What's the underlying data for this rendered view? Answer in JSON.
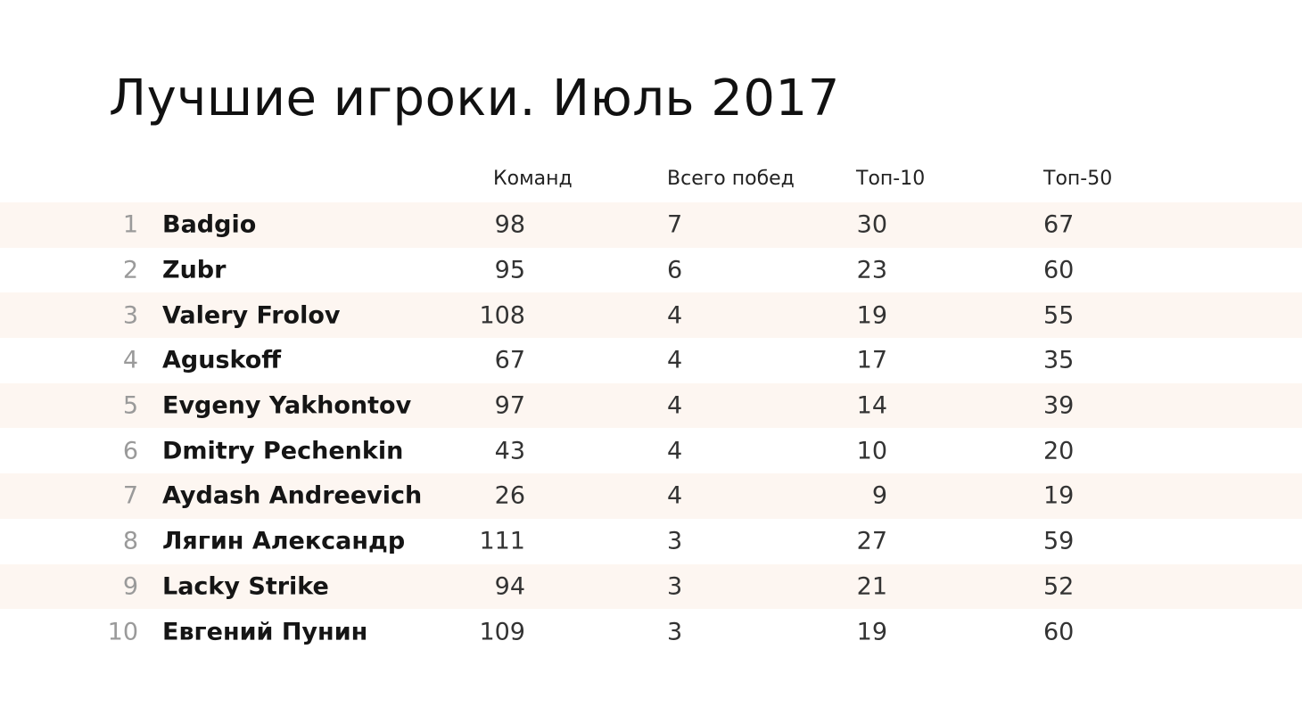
{
  "title": "Лучшие игроки. Июль 2017",
  "columns": {
    "teams": "Команд",
    "wins": "Всего побед",
    "top10": "Топ-10",
    "top50": "Топ-50"
  },
  "players": [
    {
      "rank": "1",
      "name": "Badgio",
      "teams": "98",
      "wins": "7",
      "top10": "30",
      "top50": "67"
    },
    {
      "rank": "2",
      "name": "Zubr",
      "teams": "95",
      "wins": "6",
      "top10": "23",
      "top50": "60"
    },
    {
      "rank": "3",
      "name": "Valery Frolov",
      "teams": "108",
      "wins": "4",
      "top10": "19",
      "top50": "55"
    },
    {
      "rank": "4",
      "name": "Aguskoff",
      "teams": "67",
      "wins": "4",
      "top10": "17",
      "top50": "35"
    },
    {
      "rank": "5",
      "name": "Evgeny Yakhontov",
      "teams": "97",
      "wins": "4",
      "top10": "14",
      "top50": "39"
    },
    {
      "rank": "6",
      "name": "Dmitry Pechenkin",
      "teams": "43",
      "wins": "4",
      "top10": "10",
      "top50": "20"
    },
    {
      "rank": "7",
      "name": "Aydash Andreevich",
      "teams": "26",
      "wins": "4",
      "top10": "9",
      "top50": "19"
    },
    {
      "rank": "8",
      "name": "Лягин Александр",
      "teams": "111",
      "wins": "3",
      "top10": "27",
      "top50": "59"
    },
    {
      "rank": "9",
      "name": "Lacky Strike",
      "teams": "94",
      "wins": "3",
      "top10": "21",
      "top50": "52"
    },
    {
      "rank": "10",
      "name": "Евгений Пунин",
      "teams": "109",
      "wins": "3",
      "top10": "19",
      "top50": "60"
    }
  ]
}
